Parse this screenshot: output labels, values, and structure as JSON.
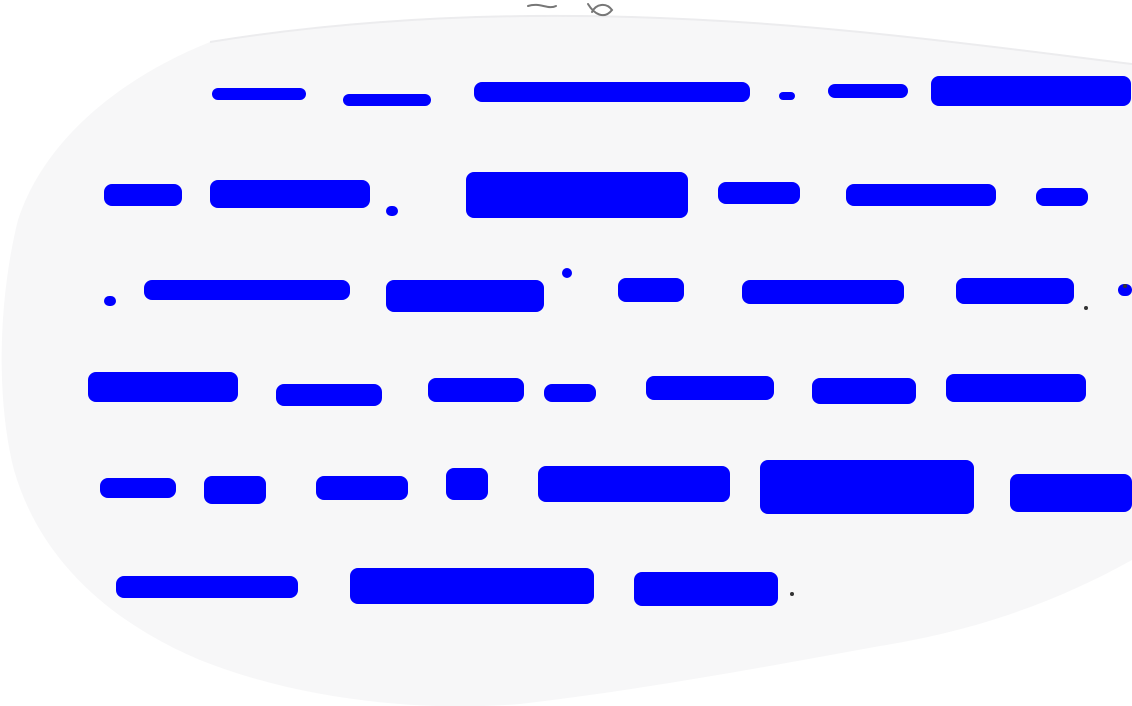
{
  "document": {
    "kind": "handwritten page, torn edges",
    "text_visible": false,
    "redaction_color": "#0000ff",
    "paper_color": "#f7f7f8",
    "lines": [
      {
        "words": 7
      },
      {
        "words": 6
      },
      {
        "words": 6
      },
      {
        "words": 7
      },
      {
        "words": 8
      },
      {
        "words": 3
      }
    ]
  }
}
